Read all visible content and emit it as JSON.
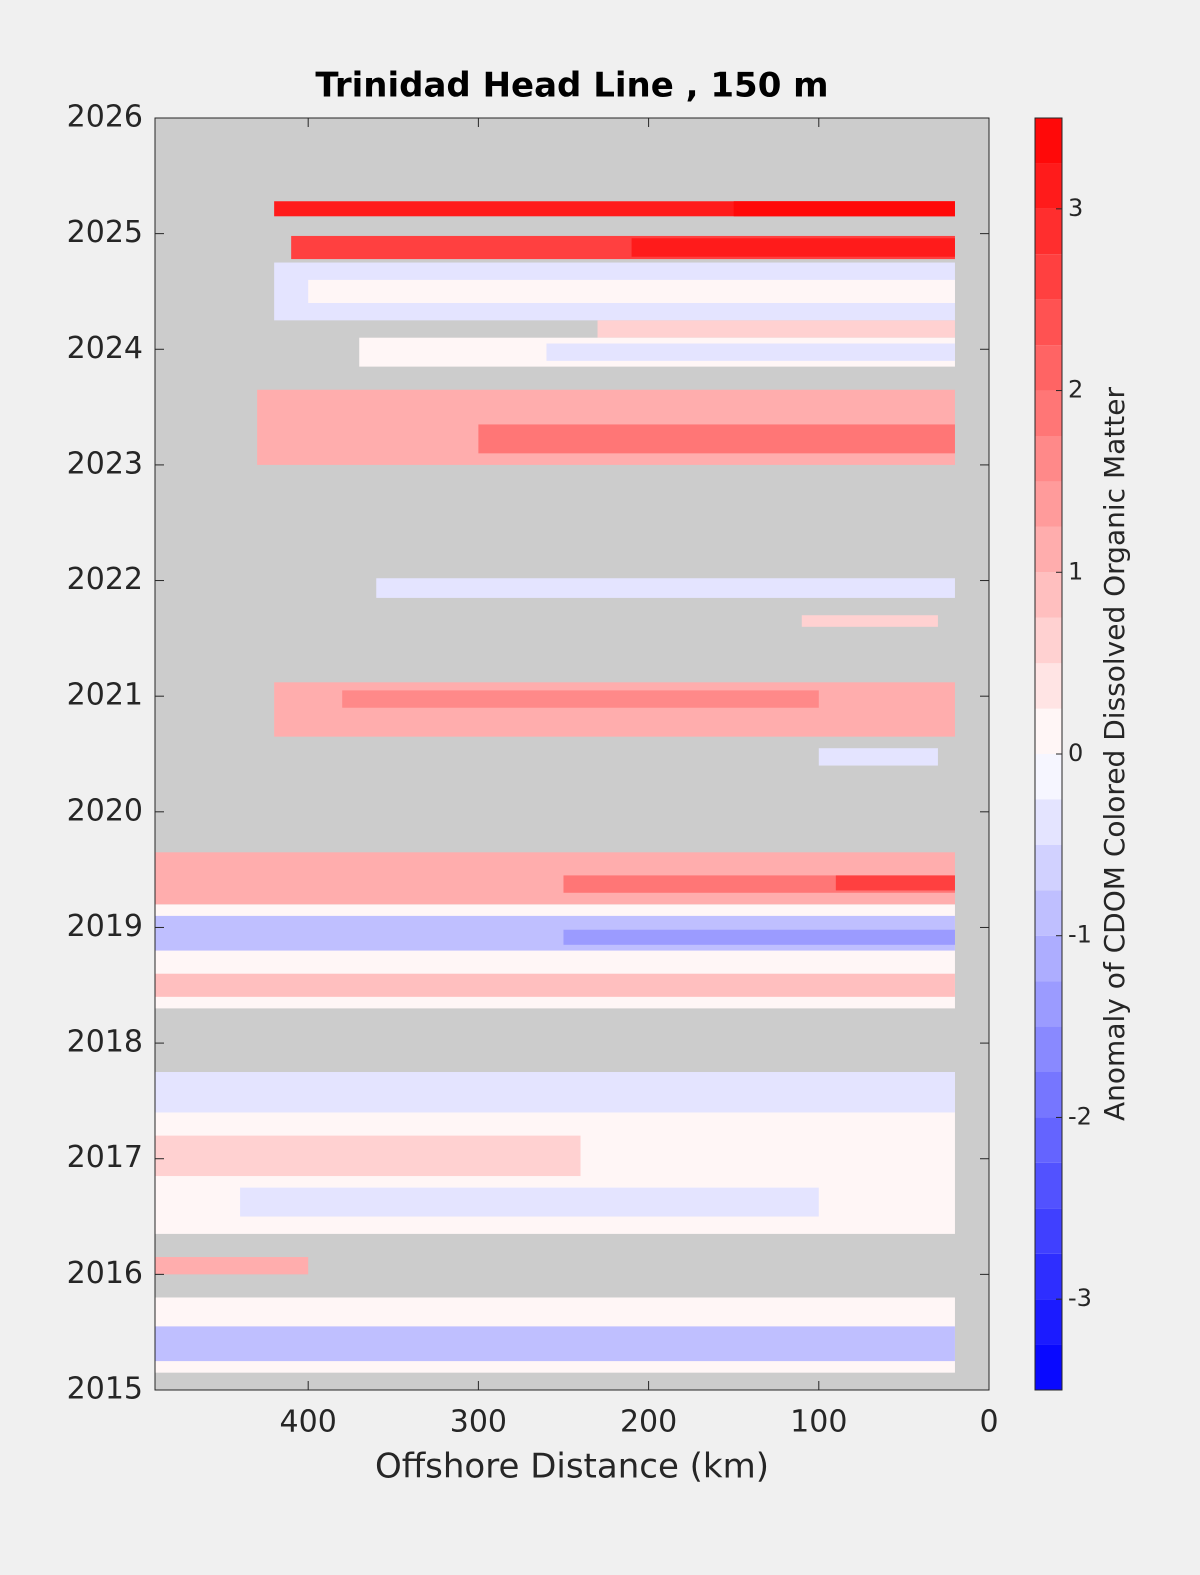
{
  "chart_data": {
    "type": "contourf",
    "title": "Trinidad Head Line , 150 m",
    "x_label": "Offshore Distance (km)",
    "colorbar_label": "Anomaly of CDOM Colored Dissolved Organic Matter",
    "xlim": [
      490,
      0
    ],
    "xticks": [
      400,
      300,
      200,
      100,
      0
    ],
    "ylim": [
      2015,
      2026
    ],
    "yticks": [
      2015,
      2016,
      2017,
      2018,
      2019,
      2020,
      2021,
      2022,
      2023,
      2024,
      2025,
      2026
    ],
    "clim": [
      -3.5,
      3.5
    ],
    "cticks": [
      -3,
      -2,
      -1,
      0,
      1,
      2,
      3
    ],
    "clevel_step": 0.25,
    "background_color": "#cccccc",
    "cells": [
      {
        "x": [
          20,
          420
        ],
        "y": [
          2025.15,
          2025.28
        ],
        "value": 3.0
      },
      {
        "x": [
          20,
          150
        ],
        "y": [
          2025.15,
          2025.28
        ],
        "value": 3.4
      },
      {
        "x": [
          20,
          410
        ],
        "y": [
          2024.78,
          2024.98
        ],
        "value": 2.6
      },
      {
        "x": [
          20,
          210
        ],
        "y": [
          2024.8,
          2024.96
        ],
        "value": 3.1
      },
      {
        "x": [
          20,
          420
        ],
        "y": [
          2024.25,
          2024.75
        ],
        "value": -0.3
      },
      {
        "x": [
          20,
          400
        ],
        "y": [
          2024.4,
          2024.6
        ],
        "value": 0.1
      },
      {
        "x": [
          20,
          230
        ],
        "y": [
          2024.1,
          2024.25
        ],
        "value": 0.6
      },
      {
        "x": [
          20,
          370
        ],
        "y": [
          2023.85,
          2024.1
        ],
        "value": 0.1
      },
      {
        "x": [
          20,
          260
        ],
        "y": [
          2023.9,
          2024.05
        ],
        "value": -0.4
      },
      {
        "x": [
          20,
          430
        ],
        "y": [
          2023.0,
          2023.65
        ],
        "value": 1.2
      },
      {
        "x": [
          20,
          300
        ],
        "y": [
          2023.1,
          2023.35
        ],
        "value": 1.8
      },
      {
        "x": [
          20,
          360
        ],
        "y": [
          2021.85,
          2022.02
        ],
        "value": -0.3
      },
      {
        "x": [
          30,
          110
        ],
        "y": [
          2021.6,
          2021.7
        ],
        "value": 0.6
      },
      {
        "x": [
          20,
          420
        ],
        "y": [
          2020.65,
          2021.12
        ],
        "value": 1.1
      },
      {
        "x": [
          100,
          380
        ],
        "y": [
          2020.9,
          2021.05
        ],
        "value": 1.6
      },
      {
        "x": [
          30,
          100
        ],
        "y": [
          2020.4,
          2020.55
        ],
        "value": -0.4
      },
      {
        "x": [
          20,
          490
        ],
        "y": [
          2018.3,
          2019.2
        ],
        "value": 0.1
      },
      {
        "x": [
          20,
          490
        ],
        "y": [
          2019.2,
          2019.65
        ],
        "value": 1.1
      },
      {
        "x": [
          20,
          250
        ],
        "y": [
          2019.3,
          2019.45
        ],
        "value": 1.8
      },
      {
        "x": [
          20,
          90
        ],
        "y": [
          2019.32,
          2019.45
        ],
        "value": 2.6
      },
      {
        "x": [
          20,
          490
        ],
        "y": [
          2018.8,
          2019.1
        ],
        "value": -0.8
      },
      {
        "x": [
          20,
          250
        ],
        "y": [
          2018.85,
          2018.98
        ],
        "value": -1.5
      },
      {
        "x": [
          20,
          490
        ],
        "y": [
          2018.4,
          2018.6
        ],
        "value": 0.8
      },
      {
        "x": [
          20,
          490
        ],
        "y": [
          2016.35,
          2017.75
        ],
        "value": 0.1
      },
      {
        "x": [
          20,
          490
        ],
        "y": [
          2017.4,
          2017.75
        ],
        "value": -0.4
      },
      {
        "x": [
          240,
          490
        ],
        "y": [
          2016.85,
          2017.2
        ],
        "value": 0.7
      },
      {
        "x": [
          100,
          440
        ],
        "y": [
          2016.5,
          2016.75
        ],
        "value": -0.4
      },
      {
        "x": [
          20,
          490
        ],
        "y": [
          2015.15,
          2015.8
        ],
        "value": 0.1
      },
      {
        "x": [
          20,
          490
        ],
        "y": [
          2015.25,
          2015.55
        ],
        "value": -0.8
      },
      {
        "x": [
          400,
          490
        ],
        "y": [
          2016.0,
          2016.15
        ],
        "value": 1.0
      }
    ]
  }
}
